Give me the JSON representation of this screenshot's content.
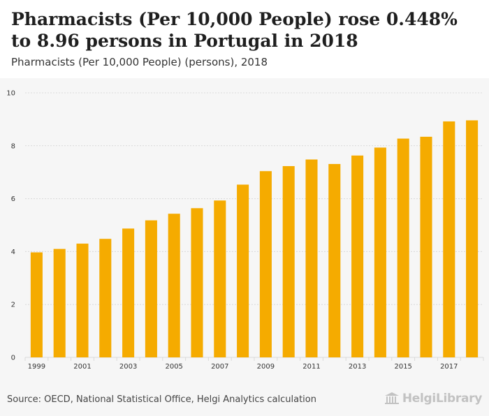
{
  "header": {
    "title": "Pharmacists (Per 10,000 People) rose 0.448% to 8.96 persons in Portugal in 2018",
    "subtitle": "Pharmacists (Per 10,000 People) (persons), 2018"
  },
  "footer": {
    "source": "Source: OECD, National Statistical Office, Helgi Analytics calculation",
    "logo_text": "HelgiLibrary"
  },
  "colors": {
    "bar": "#f5ab00",
    "grid": "#d9d9d9",
    "background": "#f6f6f6"
  },
  "chart_data": {
    "type": "bar",
    "title": "",
    "xlabel": "",
    "ylabel": "",
    "categories": [
      "1999",
      "2000",
      "2001",
      "2002",
      "2003",
      "2004",
      "2005",
      "2006",
      "2007",
      "2008",
      "2009",
      "2010",
      "2011",
      "2012",
      "2013",
      "2014",
      "2015",
      "2016",
      "2017",
      "2018"
    ],
    "x_tick_labels": [
      "1999",
      "2001",
      "2003",
      "2005",
      "2007",
      "2009",
      "2011",
      "2013",
      "2015",
      "2017"
    ],
    "values": [
      3.97,
      4.1,
      4.3,
      4.48,
      4.87,
      5.18,
      5.43,
      5.64,
      5.93,
      6.53,
      7.04,
      7.23,
      7.48,
      7.31,
      7.63,
      7.93,
      8.27,
      8.34,
      8.92,
      8.96
    ],
    "ylim": [
      0,
      10
    ],
    "yticks": [
      0,
      2,
      4,
      6,
      8,
      10
    ],
    "grid": true
  }
}
